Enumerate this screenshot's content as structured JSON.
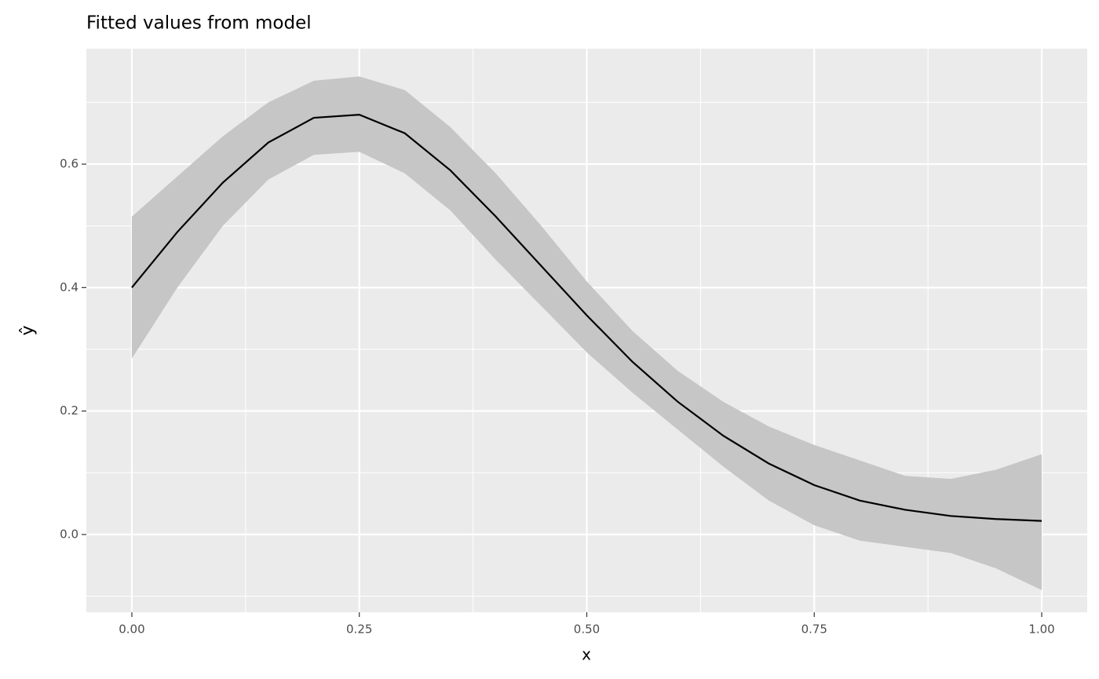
{
  "chart_data": {
    "type": "line",
    "title": "Fitted values from model",
    "x_label": "x",
    "y_label": "ŷ",
    "x": [
      0,
      0.05,
      0.1,
      0.15,
      0.2,
      0.25,
      0.3,
      0.35,
      0.4,
      0.45,
      0.5,
      0.55,
      0.6,
      0.65,
      0.7,
      0.75,
      0.8,
      0.85,
      0.9,
      0.95,
      1.0
    ],
    "series": [
      {
        "color": "#000000",
        "values": [
          0.4,
          0.49,
          0.57,
          0.635,
          0.675,
          0.68,
          0.65,
          0.59,
          0.515,
          0.435,
          0.355,
          0.28,
          0.215,
          0.16,
          0.115,
          0.08,
          0.055,
          0.04,
          0.03,
          0.025,
          0.022
        ]
      }
    ],
    "band": {
      "color": "#c6c6c6",
      "lower": [
        0.285,
        0.4,
        0.5,
        0.575,
        0.615,
        0.62,
        0.585,
        0.525,
        0.445,
        0.37,
        0.295,
        0.23,
        0.17,
        0.11,
        0.055,
        0.015,
        -0.01,
        -0.02,
        -0.03,
        -0.055,
        -0.09
      ],
      "upper": [
        0.515,
        0.58,
        0.645,
        0.7,
        0.735,
        0.742,
        0.72,
        0.66,
        0.585,
        0.5,
        0.41,
        0.33,
        0.265,
        0.215,
        0.175,
        0.145,
        0.12,
        0.095,
        0.09,
        0.105,
        0.13
      ]
    },
    "xlim": [
      -0.05,
      1.05
    ],
    "ylim": [
      -0.126,
      0.787
    ],
    "xticks": [
      {
        "value": 0,
        "label": "0.00"
      },
      0.25,
      {
        "value": 0.5,
        "label": "0.50"
      },
      0.75,
      {
        "value": 1,
        "label": "1.00"
      }
    ],
    "yticks": [
      {
        "value": 0,
        "label": "0.0"
      },
      0.2,
      0.4,
      0.6
    ],
    "grid": true
  }
}
